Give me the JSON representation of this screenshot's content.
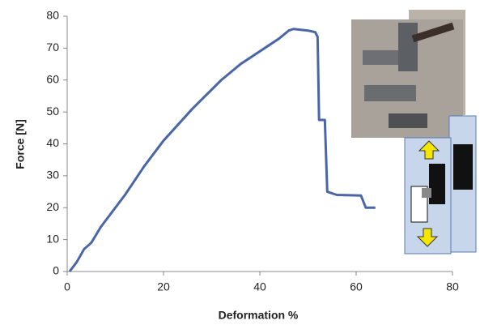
{
  "chart_data": {
    "type": "line",
    "x_label": "Deformation %",
    "y_label": "Force [N]",
    "xlim": [
      0,
      80
    ],
    "ylim": [
      0,
      80
    ],
    "xticks": [
      0,
      20,
      40,
      60,
      80
    ],
    "yticks": [
      0,
      10,
      20,
      30,
      40,
      50,
      60,
      70,
      80
    ],
    "grid": false,
    "series": [
      {
        "color": "#4a66a8",
        "x": [
          0.5,
          2,
          3.5,
          5,
          7,
          9,
          12,
          16,
          20,
          26,
          32,
          36,
          40,
          44,
          46,
          47,
          50,
          51.5,
          52,
          52.3,
          53.5,
          54,
          56,
          61,
          62,
          64
        ],
        "values": [
          0,
          3,
          7,
          9,
          14,
          18,
          24,
          33,
          41,
          51,
          60,
          65,
          69,
          73,
          75.5,
          76,
          75.5,
          75,
          73.5,
          47.5,
          47.5,
          25,
          24,
          23.8,
          20,
          20
        ]
      }
    ]
  }
}
